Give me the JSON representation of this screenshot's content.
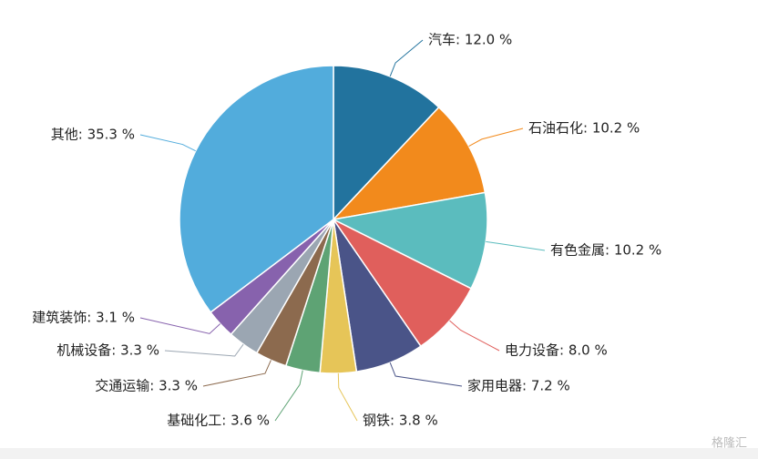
{
  "chart_data": {
    "type": "pie",
    "values": [
      12.0,
      10.2,
      10.2,
      8.0,
      7.2,
      3.8,
      3.6,
      3.3,
      3.3,
      3.1,
      35.3
    ],
    "value_labels": [
      "汽车: 12.0 %",
      "石油石化: 10.2 %",
      "有色金属: 10.2 %",
      "电力设备: 8.0 %",
      "家用电器: 7.2 %",
      "钢铁: 3.8 %",
      "基础化工: 3.6 %",
      "交通运输: 3.3 %",
      "机械设备: 3.3 %",
      "建筑装饰: 3.1 %",
      "其他: 35.3 %"
    ],
    "colors": [
      "#22739e",
      "#f28a1c",
      "#5bbcbe",
      "#e05f5c",
      "#4a5488",
      "#e6c558",
      "#5ea374",
      "#8c6a4e",
      "#9ba6b2",
      "#8762ad",
      "#52acdc"
    ],
    "watermark": "格隆汇"
  }
}
